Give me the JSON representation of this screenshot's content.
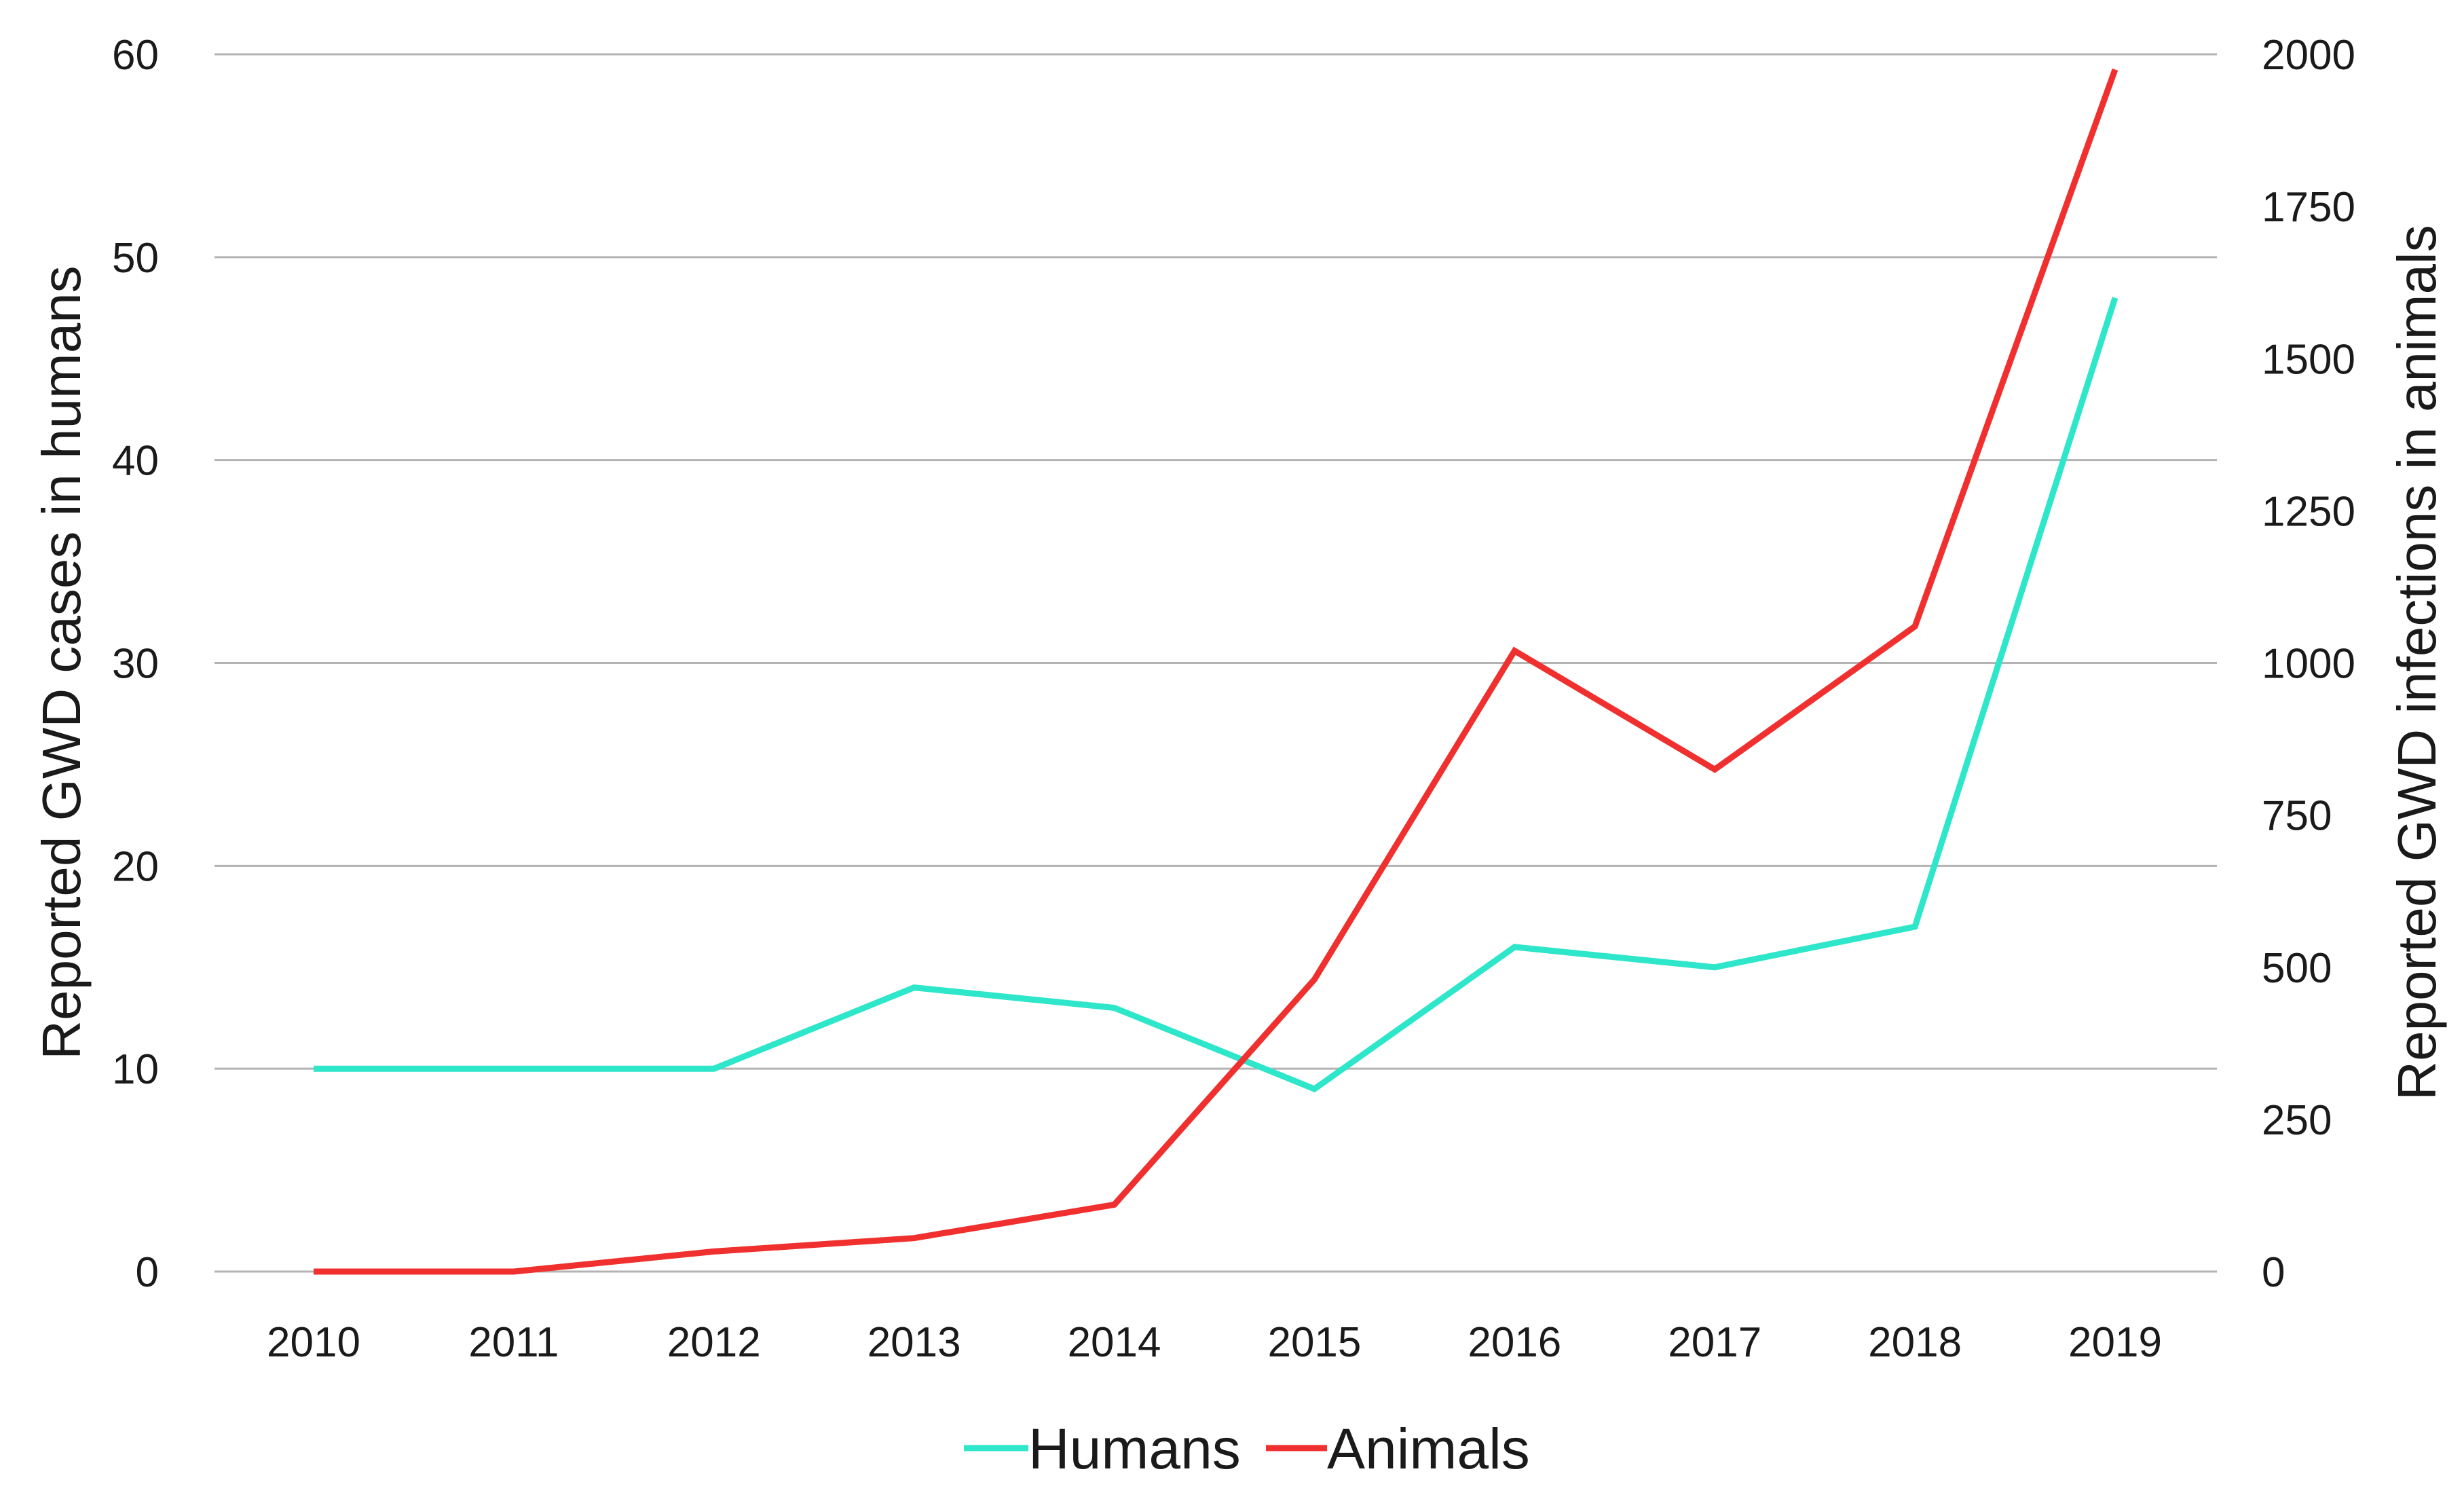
{
  "chart_data": {
    "type": "line",
    "title": "",
    "categories": [
      "2010",
      "2011",
      "2012",
      "2013",
      "2014",
      "2015",
      "2016",
      "2017",
      "2018",
      "2019"
    ],
    "series": [
      {
        "name": "Humans",
        "axis": "left",
        "color": "#2EE6C9",
        "values": [
          10,
          10,
          10,
          14,
          13,
          9,
          16,
          15,
          17,
          48
        ]
      },
      {
        "name": "Animals",
        "axis": "right",
        "color": "#F0302E",
        "values": [
          0,
          0,
          33,
          55,
          110,
          480,
          1020,
          825,
          1060,
          1975
        ]
      }
    ],
    "xlabel": "",
    "ylabel_left": "Reported GWD cases in humans",
    "ylabel_right": "Reported GWD infections in animals",
    "ylim_left": [
      0,
      60
    ],
    "yticks_left": [
      0,
      10,
      20,
      30,
      40,
      50,
      60
    ],
    "ylim_right": [
      0,
      2000
    ],
    "yticks_right": [
      0,
      250,
      500,
      750,
      1000,
      1250,
      1500,
      1750,
      2000
    ],
    "grid": true,
    "legend_position": "bottom-center"
  }
}
